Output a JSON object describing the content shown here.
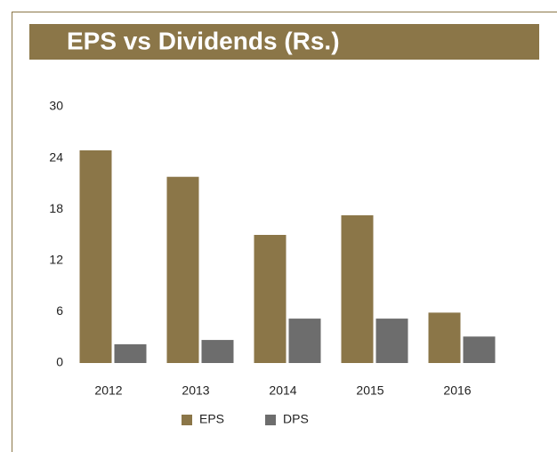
{
  "chart_data": {
    "type": "bar",
    "title": "EPS vs Dividends (Rs.)",
    "categories": [
      "2012",
      "2013",
      "2014",
      "2015",
      "2016"
    ],
    "series": [
      {
        "name": "EPS",
        "color": "#8b7648",
        "values": [
          24.9,
          21.8,
          15.0,
          17.3,
          5.9
        ]
      },
      {
        "name": "DPS",
        "color": "#6d6d6d",
        "values": [
          2.2,
          2.7,
          5.2,
          5.2,
          3.1
        ]
      }
    ],
    "ylim": [
      0,
      30
    ],
    "yticks": [
      0,
      6,
      12,
      18,
      24,
      30
    ],
    "grid": false,
    "legend": "bottom"
  }
}
